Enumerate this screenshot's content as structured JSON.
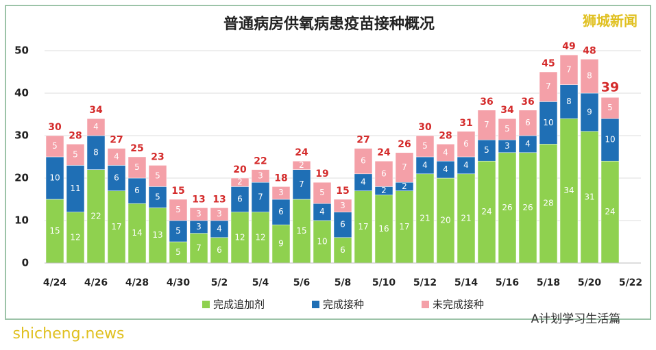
{
  "chart_data": {
    "type": "stacked_bar",
    "title": "普通病房供氧病患疫苗接种概况",
    "categories": [
      "4/24",
      null,
      "4/26",
      null,
      "4/28",
      null,
      "4/30",
      null,
      "5/2",
      null,
      "5/4",
      null,
      "5/6",
      null,
      "5/8",
      null,
      "5/10",
      null,
      "5/12",
      null,
      "5/14",
      null,
      "5/16",
      null,
      "5/18",
      null,
      "5/20",
      null,
      "5/22"
    ],
    "series": [
      {
        "name": "完成追加剂",
        "color": "#8fd14f",
        "values": [
          15,
          12,
          22,
          17,
          14,
          13,
          5,
          7,
          6,
          12,
          12,
          9,
          15,
          10,
          6,
          17,
          16,
          17,
          21,
          20,
          21,
          24,
          26,
          26,
          28,
          34,
          31,
          24,
          null
        ]
      },
      {
        "name": "完成接种",
        "color": "#1f6fb5",
        "values": [
          10,
          11,
          8,
          6,
          6,
          5,
          5,
          3,
          4,
          6,
          7,
          6,
          7,
          4,
          6,
          4,
          2,
          2,
          4,
          4,
          4,
          5,
          3,
          4,
          10,
          8,
          9,
          10,
          null
        ]
      },
      {
        "name": "未完成接种",
        "color": "#f4a0a8",
        "values": [
          5,
          5,
          4,
          4,
          5,
          5,
          5,
          3,
          3,
          2,
          3,
          3,
          2,
          5,
          3,
          6,
          6,
          7,
          5,
          4,
          6,
          7,
          5,
          6,
          7,
          7,
          8,
          5,
          null
        ]
      }
    ],
    "totals": [
      30,
      28,
      34,
      27,
      25,
      23,
      15,
      13,
      13,
      20,
      22,
      18,
      24,
      19,
      15,
      27,
      24,
      26,
      30,
      28,
      31,
      36,
      34,
      36,
      45,
      49,
      48,
      39,
      null
    ],
    "ylim": [
      0,
      50
    ],
    "yticks": [
      0,
      10,
      20,
      30,
      40,
      50
    ],
    "grid": true,
    "annotations": [
      "狮城新闻",
      "A计划学习生活篇",
      "shicheng.news"
    ]
  }
}
